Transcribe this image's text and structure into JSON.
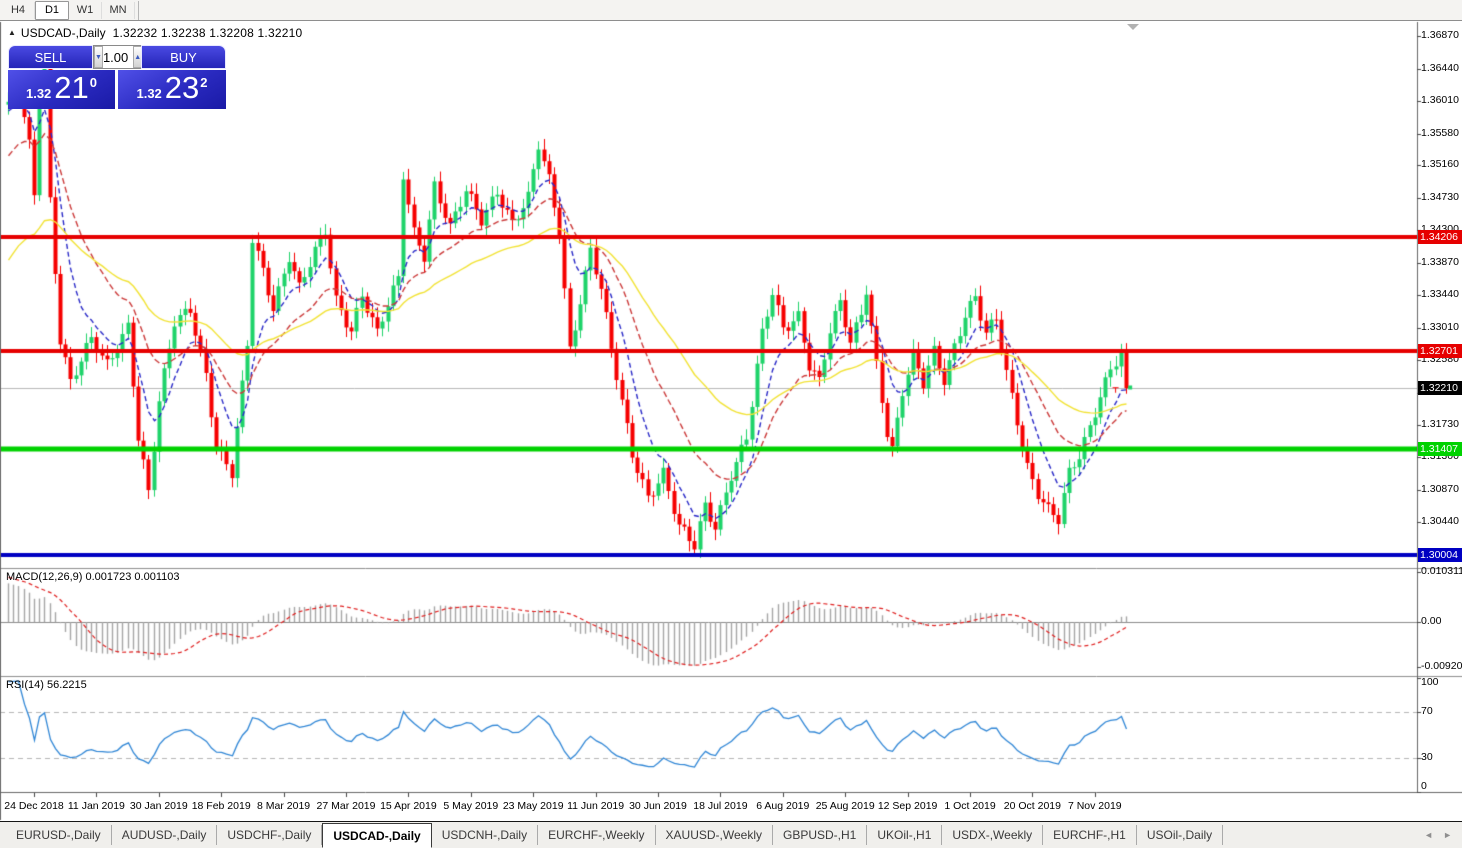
{
  "toolbar": {
    "timeframes": [
      {
        "label": "H4",
        "active": false
      },
      {
        "label": "D1",
        "active": true
      },
      {
        "label": "W1",
        "active": false
      },
      {
        "label": "MN",
        "active": false
      }
    ]
  },
  "icons": {
    "collapse": "▲",
    "spin_up": "▲",
    "spin_down": "▼",
    "tab_scroll_left": "◄",
    "tab_scroll_right": "►"
  },
  "title": {
    "symbol": "USDCAD-,Daily",
    "ohlc": "1.32232 1.32238 1.32208 1.32210"
  },
  "trade_panel": {
    "sell_label": "SELL",
    "buy_label": "BUY",
    "lot_size": "1.00",
    "sell_price": {
      "prefix": "1.32",
      "big": "21",
      "sup": "0"
    },
    "buy_price": {
      "prefix": "1.32",
      "big": "23",
      "sup": "2"
    }
  },
  "chart_data": {
    "type": "candlestick",
    "symbol": "USDCAD-",
    "timeframe": "Daily",
    "current_bar_ohlc": {
      "open": 1.32232,
      "high": 1.32238,
      "low": 1.32208,
      "close": 1.3221
    },
    "bars_count": 216,
    "price_axis": {
      "top_price": 1.37042,
      "bottom_price": 1.29832,
      "ticks": [
        "1.36870",
        "1.36440",
        "1.36010",
        "1.35580",
        "1.35160",
        "1.34730",
        "1.34300",
        "1.33870",
        "1.33440",
        "1.33010",
        "1.32580",
        "1.32150",
        "1.31730",
        "1.31300",
        "1.30870",
        "1.30440"
      ]
    },
    "current_price": {
      "value": 1.3221,
      "label": "1.32210",
      "line_color": "#b8b8b8",
      "tag_color": "#000000"
    },
    "levels": [
      {
        "value": 1.34206,
        "label": "1.34206",
        "color": "#e60000",
        "role": "resistance"
      },
      {
        "value": 1.32701,
        "label": "1.32701",
        "color": "#e60000",
        "role": "resistance"
      },
      {
        "value": 1.31407,
        "label": "1.31407",
        "color": "#00d200",
        "role": "support"
      },
      {
        "value": 1.30004,
        "label": "1.30004",
        "color": "#0000c2",
        "role": "support"
      }
    ],
    "candles": {
      "bull_color": "#1fd36a",
      "bear_color": "#f60000"
    },
    "price_anchors": [
      [
        0,
        1.359
      ],
      [
        2,
        1.362
      ],
      [
        4,
        1.3545
      ],
      [
        5,
        1.348
      ],
      [
        6,
        1.3625
      ],
      [
        7,
        1.3655
      ],
      [
        8,
        1.347
      ],
      [
        10,
        1.3285
      ],
      [
        12,
        1.3225
      ],
      [
        16,
        1.3285
      ],
      [
        19,
        1.3255
      ],
      [
        23,
        1.3305
      ],
      [
        25,
        1.3155
      ],
      [
        27,
        1.308
      ],
      [
        29,
        1.32
      ],
      [
        32,
        1.331
      ],
      [
        35,
        1.333
      ],
      [
        38,
        1.324
      ],
      [
        40,
        1.314
      ],
      [
        43,
        1.3105
      ],
      [
        46,
        1.328
      ],
      [
        47,
        1.342
      ],
      [
        49,
        1.338
      ],
      [
        51,
        1.333
      ],
      [
        54,
        1.3395
      ],
      [
        56,
        1.335
      ],
      [
        59,
        1.34
      ],
      [
        61,
        1.343
      ],
      [
        63,
        1.334
      ],
      [
        66,
        1.33
      ],
      [
        68,
        1.3345
      ],
      [
        71,
        1.329
      ],
      [
        73,
        1.333
      ],
      [
        75,
        1.3365
      ],
      [
        76,
        1.3505
      ],
      [
        78,
        1.343
      ],
      [
        80,
        1.34
      ],
      [
        82,
        1.349
      ],
      [
        85,
        1.343
      ],
      [
        88,
        1.348
      ],
      [
        91,
        1.3445
      ],
      [
        94,
        1.3485
      ],
      [
        97,
        1.344
      ],
      [
        100,
        1.347
      ],
      [
        102,
        1.354
      ],
      [
        104,
        1.3495
      ],
      [
        106,
        1.343
      ],
      [
        108,
        1.3275
      ],
      [
        110,
        1.334
      ],
      [
        112,
        1.3405
      ],
      [
        114,
        1.335
      ],
      [
        116,
        1.327
      ],
      [
        118,
        1.32
      ],
      [
        120,
        1.3135
      ],
      [
        123,
        1.308
      ],
      [
        126,
        1.311
      ],
      [
        129,
        1.3035
      ],
      [
        132,
        1.301
      ],
      [
        134,
        1.3065
      ],
      [
        136,
        1.304
      ],
      [
        139,
        1.311
      ],
      [
        142,
        1.3155
      ],
      [
        145,
        1.329
      ],
      [
        147,
        1.3345
      ],
      [
        149,
        1.33
      ],
      [
        152,
        1.332
      ],
      [
        154,
        1.3255
      ],
      [
        156,
        1.323
      ],
      [
        158,
        1.3295
      ],
      [
        160,
        1.333
      ],
      [
        162,
        1.328
      ],
      [
        164,
        1.332
      ],
      [
        165,
        1.3355
      ],
      [
        167,
        1.3255
      ],
      [
        169,
        1.3165
      ],
      [
        170,
        1.314
      ],
      [
        172,
        1.3215
      ],
      [
        174,
        1.326
      ],
      [
        176,
        1.3225
      ],
      [
        178,
        1.327
      ],
      [
        180,
        1.3235
      ],
      [
        182,
        1.328
      ],
      [
        184,
        1.332
      ],
      [
        186,
        1.334
      ],
      [
        188,
        1.329
      ],
      [
        190,
        1.331
      ],
      [
        192,
        1.324
      ],
      [
        194,
        1.318
      ],
      [
        196,
        1.312
      ],
      [
        198,
        1.3085
      ],
      [
        200,
        1.306
      ],
      [
        202,
        1.3045
      ],
      [
        204,
        1.3105
      ],
      [
        206,
        1.313
      ],
      [
        208,
        1.317
      ],
      [
        210,
        1.3215
      ],
      [
        212,
        1.325
      ],
      [
        214,
        1.327
      ],
      [
        215,
        1.3221
      ]
    ],
    "moving_averages": [
      {
        "name": "fast-ma",
        "period": 8,
        "method": "ema",
        "color": "#2a2ac8",
        "dash": [
          5,
          3
        ]
      },
      {
        "name": "medium-ma",
        "period": 20,
        "method": "ema",
        "color": "#cc3b3b",
        "dash": [
          6,
          3
        ]
      },
      {
        "name": "slow-ma",
        "period": 45,
        "method": "ema",
        "color": "#f2e335",
        "dash": []
      }
    ],
    "x_axis": {
      "first_label_bar": 5,
      "label_step_bars": 12,
      "labels": [
        "24 Dec 2018",
        "11 Jan 2019",
        "30 Jan 2019",
        "18 Feb 2019",
        "8 Mar 2019",
        "27 Mar 2019",
        "15 Apr 2019",
        "5 May 2019",
        "23 May 2019",
        "11 Jun 2019",
        "30 Jun 2019",
        "18 Jul 2019",
        "6 Aug 2019",
        "25 Aug 2019",
        "12 Sep 2019",
        "1 Oct 2019",
        "20 Oct 2019",
        "7 Nov 2019"
      ]
    },
    "macd": {
      "label": "MACD(12,26,9) 0.001723 0.001103",
      "fast": 12,
      "slow": 26,
      "signal": 9,
      "value": 0.001723,
      "signal_value": 0.001103,
      "axis_ticks": [
        "0.010311",
        "0.00",
        "-0.009203"
      ],
      "axis_values": [
        0.010311,
        0,
        -0.009203
      ],
      "histogram_color": "#a6a6a6",
      "signal_color": "#e02020"
    },
    "rsi": {
      "label": "RSI(14) 56.2215",
      "period": 14,
      "value": 56.2215,
      "axis_ticks": [
        "100",
        "70",
        "30",
        "0"
      ],
      "guide_levels": [
        70,
        30
      ],
      "color": "#2f86d6"
    },
    "indicator_warmup_bars": 40,
    "markers": [
      {
        "shape": "t",
        "color": "#f60000",
        "bar": 213,
        "price": 1.3219
      },
      {
        "shape": "square",
        "color": "#1fd36a",
        "bar": 215.8,
        "price": 1.3222
      }
    ]
  },
  "tabs": {
    "active": "USDCAD-,Daily",
    "items": [
      "EURUSD-,Daily",
      "AUDUSD-,Daily",
      "USDCHF-,Daily",
      "USDCAD-,Daily",
      "USDCNH-,Daily",
      "EURCHF-,Weekly",
      "XAUUSD-,Weekly",
      "GBPUSD-,H1",
      "UKOil-,H1",
      "USDX-,Weekly",
      "EURCHF-,H1",
      "USOil-,Daily"
    ]
  }
}
